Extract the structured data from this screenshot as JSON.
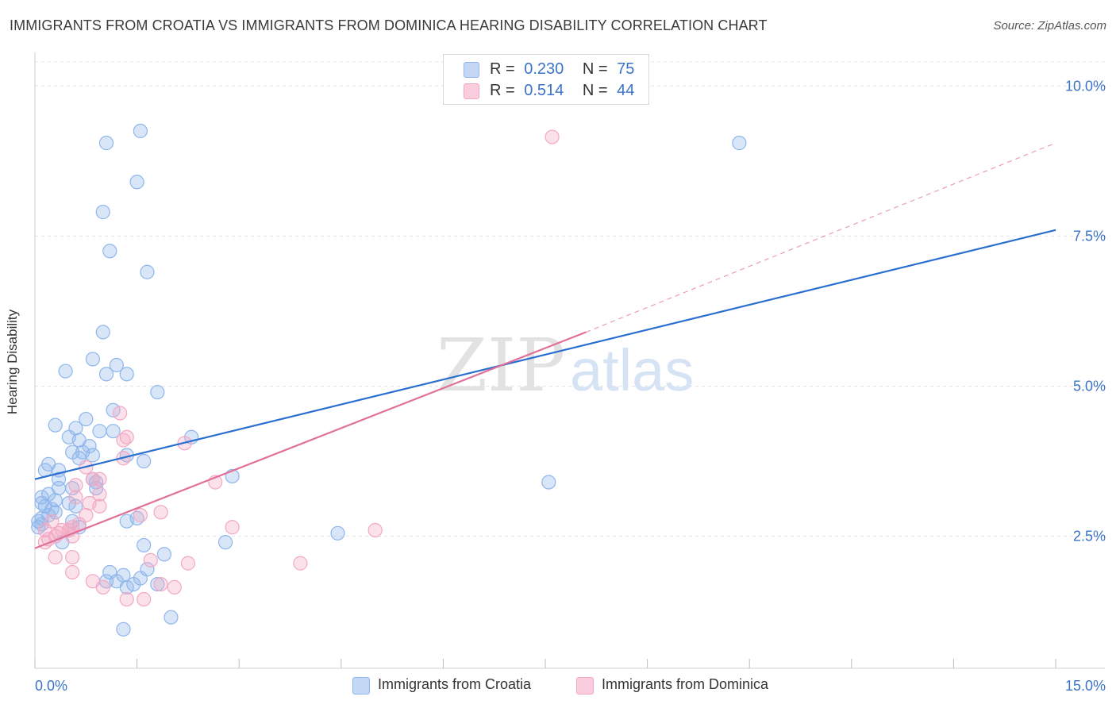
{
  "title": "IMMIGRANTS FROM CROATIA VS IMMIGRANTS FROM DOMINICA HEARING DISABILITY CORRELATION CHART",
  "source": "Source: ZipAtlas.com",
  "watermark": {
    "zip": "ZIP",
    "atlas": "atlas"
  },
  "legend_stats": [
    {
      "r_label": "R =",
      "r_value": "0.230",
      "n_label": "N =",
      "n_value": "75"
    },
    {
      "r_label": "R =",
      "r_value": "0.514",
      "n_label": "N =",
      "n_value": "44"
    }
  ],
  "chart_data": {
    "type": "scatter",
    "title": "IMMIGRANTS FROM CROATIA VS IMMIGRANTS FROM DOMINICA HEARING DISABILITY CORRELATION CHART",
    "xlabel": "",
    "ylabel": "Hearing Disability",
    "xlim": [
      0,
      15
    ],
    "ylim": [
      0.3,
      10.4
    ],
    "x_tick_labels": [
      "0.0%",
      "15.0%"
    ],
    "y_ticks": [
      2.5,
      5.0,
      7.5,
      10.0
    ],
    "y_tick_labels": [
      "2.5%",
      "5.0%",
      "7.5%",
      "10.0%"
    ],
    "x_minor_ticks": [
      0,
      1.5,
      3,
      4.5,
      6,
      7.5,
      9,
      10.5,
      12,
      13.5,
      15
    ],
    "grid": true,
    "legend_position": "bottom",
    "series": [
      {
        "name": "Immigrants from Croatia",
        "color": "#8fb6ec",
        "line_color": "#2a6fcf",
        "r": 0.23,
        "n": 75,
        "trend": {
          "x0": 0,
          "y0": 3.45,
          "x1": 15,
          "y1": 7.6,
          "dashed_to": null
        },
        "points": [
          [
            1.05,
            9.05
          ],
          [
            1.55,
            9.25
          ],
          [
            1.5,
            8.4
          ],
          [
            1.0,
            7.9
          ],
          [
            1.1,
            7.25
          ],
          [
            1.65,
            6.9
          ],
          [
            1.0,
            5.9
          ],
          [
            0.85,
            5.45
          ],
          [
            1.2,
            5.35
          ],
          [
            1.35,
            5.2
          ],
          [
            1.05,
            5.2
          ],
          [
            0.45,
            5.25
          ],
          [
            1.8,
            4.9
          ],
          [
            1.15,
            4.6
          ],
          [
            0.75,
            4.45
          ],
          [
            0.3,
            4.35
          ],
          [
            0.6,
            4.3
          ],
          [
            1.15,
            4.25
          ],
          [
            0.95,
            4.25
          ],
          [
            2.3,
            4.15
          ],
          [
            0.5,
            4.15
          ],
          [
            0.65,
            4.1
          ],
          [
            0.8,
            4.0
          ],
          [
            0.7,
            3.9
          ],
          [
            0.85,
            3.85
          ],
          [
            0.55,
            3.9
          ],
          [
            0.65,
            3.8
          ],
          [
            1.35,
            3.85
          ],
          [
            1.6,
            3.75
          ],
          [
            0.2,
            3.7
          ],
          [
            0.15,
            3.6
          ],
          [
            0.35,
            3.6
          ],
          [
            0.35,
            3.45
          ],
          [
            0.85,
            3.45
          ],
          [
            0.9,
            3.4
          ],
          [
            2.9,
            3.5
          ],
          [
            0.55,
            3.3
          ],
          [
            0.9,
            3.3
          ],
          [
            0.35,
            3.3
          ],
          [
            0.2,
            3.2
          ],
          [
            0.1,
            3.15
          ],
          [
            0.3,
            3.1
          ],
          [
            0.5,
            3.05
          ],
          [
            0.6,
            3.0
          ],
          [
            0.1,
            3.05
          ],
          [
            0.15,
            3.0
          ],
          [
            0.25,
            2.95
          ],
          [
            0.3,
            2.9
          ],
          [
            0.2,
            2.85
          ],
          [
            0.1,
            2.8
          ],
          [
            0.55,
            2.75
          ],
          [
            0.05,
            2.75
          ],
          [
            1.35,
            2.75
          ],
          [
            1.5,
            2.8
          ],
          [
            0.65,
            2.65
          ],
          [
            0.05,
            2.65
          ],
          [
            0.1,
            2.7
          ],
          [
            0.4,
            2.4
          ],
          [
            1.6,
            2.35
          ],
          [
            2.8,
            2.4
          ],
          [
            4.45,
            2.55
          ],
          [
            1.9,
            2.2
          ],
          [
            1.65,
            1.95
          ],
          [
            1.1,
            1.9
          ],
          [
            1.3,
            1.85
          ],
          [
            1.55,
            1.8
          ],
          [
            1.05,
            1.75
          ],
          [
            1.2,
            1.75
          ],
          [
            1.45,
            1.7
          ],
          [
            1.8,
            1.7
          ],
          [
            1.35,
            1.65
          ],
          [
            2.0,
            1.15
          ],
          [
            1.3,
            0.95
          ],
          [
            7.55,
            3.4
          ],
          [
            10.35,
            9.05
          ]
        ]
      },
      {
        "name": "Immigrants from Dominica",
        "color": "#f3a8c3",
        "line_color": "#e0709a",
        "r": 0.514,
        "n": 44,
        "trend": {
          "x0": 0,
          "y0": 2.3,
          "x1": 8.1,
          "y1": 5.9,
          "dashed_to": [
            15,
            9.05
          ]
        },
        "points": [
          [
            7.6,
            9.15
          ],
          [
            1.25,
            4.55
          ],
          [
            1.35,
            4.15
          ],
          [
            1.3,
            4.1
          ],
          [
            2.2,
            4.05
          ],
          [
            1.3,
            3.8
          ],
          [
            0.75,
            3.65
          ],
          [
            0.85,
            3.45
          ],
          [
            0.95,
            3.45
          ],
          [
            2.65,
            3.4
          ],
          [
            0.6,
            3.35
          ],
          [
            0.6,
            3.15
          ],
          [
            0.95,
            3.2
          ],
          [
            0.8,
            3.05
          ],
          [
            0.95,
            3.0
          ],
          [
            0.75,
            2.85
          ],
          [
            1.85,
            2.9
          ],
          [
            1.55,
            2.85
          ],
          [
            0.25,
            2.75
          ],
          [
            0.65,
            2.7
          ],
          [
            0.55,
            2.65
          ],
          [
            2.9,
            2.65
          ],
          [
            5.0,
            2.6
          ],
          [
            0.5,
            2.6
          ],
          [
            0.15,
            2.6
          ],
          [
            0.35,
            2.55
          ],
          [
            0.4,
            2.6
          ],
          [
            0.5,
            2.6
          ],
          [
            0.55,
            2.5
          ],
          [
            0.3,
            2.5
          ],
          [
            0.2,
            2.45
          ],
          [
            0.15,
            2.4
          ],
          [
            0.3,
            2.15
          ],
          [
            0.55,
            2.15
          ],
          [
            1.7,
            2.1
          ],
          [
            2.25,
            2.05
          ],
          [
            3.9,
            2.05
          ],
          [
            0.55,
            1.9
          ],
          [
            0.85,
            1.75
          ],
          [
            1.0,
            1.65
          ],
          [
            1.85,
            1.7
          ],
          [
            2.05,
            1.65
          ],
          [
            1.35,
            1.45
          ],
          [
            1.6,
            1.45
          ]
        ]
      }
    ]
  }
}
